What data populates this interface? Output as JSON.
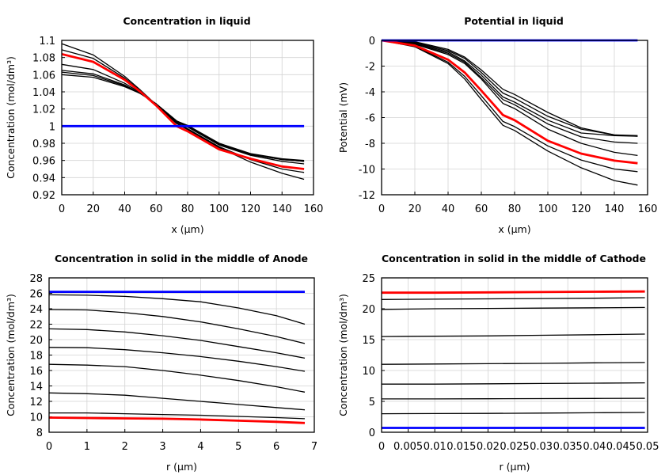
{
  "colors": {
    "black": "#000000",
    "red": "#ff0000",
    "blue": "#0000ff",
    "grid": "#d3d3d3"
  },
  "chart_data": [
    {
      "type": "line",
      "title": "Concentration in liquid",
      "xlabel": "x (µm)",
      "ylabel": "Concentration (mol/dm³)",
      "xlim": [
        0,
        160
      ],
      "ylim": [
        0.92,
        1.1
      ],
      "xticks": [
        "0",
        "20",
        "40",
        "60",
        "80",
        "100",
        "120",
        "140",
        "160"
      ],
      "yticks": [
        "0.92",
        "0.94",
        "0.96",
        "0.98",
        "1",
        "1.02",
        "1.04",
        "1.06",
        "1.08",
        "1.1"
      ],
      "grid": true,
      "x": [
        0,
        20,
        40,
        50,
        60,
        73,
        80,
        100,
        120,
        140,
        154
      ],
      "series": [
        {
          "color": "black",
          "values": [
            1.096,
            1.083,
            1.058,
            1.042,
            1.025,
            1.003,
            0.996,
            0.975,
            0.958,
            0.945,
            0.938
          ]
        },
        {
          "color": "black",
          "values": [
            1.089,
            1.079,
            1.056,
            1.041,
            1.025,
            1.004,
            0.997,
            0.976,
            0.961,
            0.95,
            0.946
          ]
        },
        {
          "color": "black",
          "values": [
            1.072,
            1.066,
            1.05,
            1.039,
            1.026,
            1.005,
            0.999,
            0.978,
            0.966,
            0.959,
            0.956
          ]
        },
        {
          "color": "black",
          "values": [
            1.065,
            1.061,
            1.048,
            1.038,
            1.026,
            1.006,
            1.0,
            0.979,
            0.967,
            0.961,
            0.959
          ]
        },
        {
          "color": "black",
          "values": [
            1.063,
            1.059,
            1.047,
            1.038,
            1.026,
            1.006,
            1.0,
            0.98,
            0.967,
            0.961,
            0.959
          ]
        },
        {
          "color": "black",
          "values": [
            1.06,
            1.057,
            1.046,
            1.038,
            1.026,
            1.006,
            1.001,
            0.98,
            0.968,
            0.962,
            0.96
          ]
        },
        {
          "color": "red",
          "values": [
            1.084,
            1.075,
            1.054,
            1.04,
            1.024,
            1.0,
            0.994,
            0.973,
            0.962,
            0.953,
            0.95
          ]
        },
        {
          "color": "blue",
          "values": [
            1,
            1,
            1,
            1,
            1,
            1,
            1,
            1,
            1,
            1,
            1
          ]
        }
      ]
    },
    {
      "type": "line",
      "title": "Potential in liquid",
      "xlabel": "x (µm)",
      "ylabel": "Potential (mV)",
      "xlim": [
        0,
        160
      ],
      "ylim": [
        -12,
        0
      ],
      "xticks": [
        "0",
        "20",
        "40",
        "60",
        "80",
        "100",
        "120",
        "140",
        "160"
      ],
      "yticks": [
        "-12",
        "-10",
        "-8",
        "-6",
        "-4",
        "-2",
        "0"
      ],
      "grid": true,
      "x": [
        0,
        20,
        40,
        50,
        60,
        73,
        80,
        100,
        120,
        140,
        154
      ],
      "series": [
        {
          "color": "black",
          "values": [
            0,
            -0.1,
            -0.7,
            -1.3,
            -2.3,
            -3.8,
            -4.2,
            -5.6,
            -6.8,
            -7.35,
            -7.45
          ]
        },
        {
          "color": "black",
          "values": [
            0,
            -0.15,
            -0.8,
            -1.4,
            -2.5,
            -4.1,
            -4.5,
            -5.9,
            -6.9,
            -7.35,
            -7.4
          ]
        },
        {
          "color": "black",
          "values": [
            0,
            -0.2,
            -0.9,
            -1.6,
            -2.7,
            -4.4,
            -4.8,
            -6.2,
            -7.2,
            -7.4,
            -7.45
          ]
        },
        {
          "color": "black",
          "values": [
            0,
            -0.25,
            -1.0,
            -1.7,
            -2.9,
            -4.6,
            -5.0,
            -6.5,
            -7.5,
            -7.9,
            -8.0
          ]
        },
        {
          "color": "black",
          "values": [
            0,
            -0.3,
            -1.1,
            -1.8,
            -3.0,
            -4.9,
            -5.3,
            -6.9,
            -8.0,
            -8.7,
            -8.95
          ]
        },
        {
          "color": "black",
          "values": [
            0,
            -0.45,
            -1.7,
            -2.8,
            -4.3,
            -6.3,
            -6.7,
            -8.2,
            -9.3,
            -10.0,
            -10.2
          ]
        },
        {
          "color": "black",
          "values": [
            0,
            -0.5,
            -1.8,
            -3.0,
            -4.6,
            -6.6,
            -7.0,
            -8.6,
            -9.9,
            -10.9,
            -11.25
          ]
        },
        {
          "color": "red",
          "values": [
            0,
            -0.4,
            -1.5,
            -2.5,
            -3.9,
            -5.8,
            -6.2,
            -7.8,
            -8.8,
            -9.35,
            -9.55
          ]
        },
        {
          "color": "blue",
          "values": [
            0,
            0,
            0,
            0,
            0,
            0,
            0,
            0,
            0,
            0,
            0
          ]
        }
      ]
    },
    {
      "type": "line",
      "title": "Concentration in solid in the middle of Anode",
      "xlabel": "r (µm)",
      "ylabel": "Concentration (mol/dm³)",
      "xlim": [
        0,
        7
      ],
      "ylim": [
        8,
        28
      ],
      "xticks": [
        "0",
        "1",
        "2",
        "3",
        "4",
        "5",
        "6",
        "7"
      ],
      "yticks": [
        "8",
        "10",
        "12",
        "14",
        "16",
        "18",
        "20",
        "22",
        "24",
        "26",
        "28"
      ],
      "grid": true,
      "x": [
        0,
        1,
        2,
        3,
        4,
        5,
        6,
        6.75
      ],
      "series": [
        {
          "color": "black",
          "values": [
            25.8,
            25.75,
            25.6,
            25.3,
            24.9,
            24.1,
            23.1,
            22.0
          ]
        },
        {
          "color": "black",
          "values": [
            23.9,
            23.85,
            23.5,
            23.0,
            22.3,
            21.4,
            20.4,
            19.5
          ]
        },
        {
          "color": "black",
          "values": [
            21.4,
            21.3,
            21.0,
            20.5,
            19.9,
            19.1,
            18.3,
            17.6
          ]
        },
        {
          "color": "black",
          "values": [
            19.0,
            18.95,
            18.7,
            18.3,
            17.8,
            17.2,
            16.5,
            15.9
          ]
        },
        {
          "color": "black",
          "values": [
            16.8,
            16.7,
            16.5,
            16.0,
            15.4,
            14.7,
            13.9,
            13.2
          ]
        },
        {
          "color": "black",
          "values": [
            13.1,
            13.0,
            12.8,
            12.4,
            12.0,
            11.6,
            11.2,
            10.9
          ]
        },
        {
          "color": "black",
          "values": [
            10.5,
            10.5,
            10.4,
            10.3,
            10.2,
            10.05,
            9.9,
            9.75
          ]
        },
        {
          "color": "red",
          "values": [
            9.9,
            9.85,
            9.8,
            9.75,
            9.65,
            9.5,
            9.35,
            9.2
          ]
        },
        {
          "color": "blue",
          "values": [
            26.2,
            26.2,
            26.2,
            26.2,
            26.2,
            26.2,
            26.2,
            26.2
          ]
        }
      ]
    },
    {
      "type": "line",
      "title": "Concentration in solid in the middle of Cathode",
      "xlabel": "r (µm)",
      "ylabel": "Concentration (mol/dm³)",
      "xlim": [
        0,
        0.05
      ],
      "ylim": [
        0,
        25
      ],
      "xticks": [
        "0",
        "0.005",
        "0.01",
        "0.015",
        "0.02",
        "0.025",
        "0.03",
        "0.035",
        "0.04",
        "0.045",
        "0.05"
      ],
      "yticks": [
        "0",
        "5",
        "10",
        "15",
        "20",
        "25"
      ],
      "grid": true,
      "x": [
        0,
        0.01,
        0.02,
        0.03,
        0.04,
        0.0495
      ],
      "series": [
        {
          "color": "black",
          "values": [
            21.5,
            21.55,
            21.6,
            21.65,
            21.7,
            21.8
          ]
        },
        {
          "color": "black",
          "values": [
            19.9,
            20.0,
            20.05,
            20.1,
            20.15,
            20.2
          ]
        },
        {
          "color": "black",
          "values": [
            15.5,
            15.55,
            15.6,
            15.7,
            15.8,
            15.9
          ]
        },
        {
          "color": "black",
          "values": [
            11.0,
            11.05,
            11.1,
            11.15,
            11.25,
            11.3
          ]
        },
        {
          "color": "black",
          "values": [
            7.8,
            7.8,
            7.85,
            7.9,
            7.95,
            8.0
          ]
        },
        {
          "color": "black",
          "values": [
            5.4,
            5.4,
            5.42,
            5.45,
            5.48,
            5.5
          ]
        },
        {
          "color": "black",
          "values": [
            3.0,
            3.02,
            3.05,
            3.1,
            3.15,
            3.2
          ]
        },
        {
          "color": "red",
          "values": [
            22.6,
            22.6,
            22.65,
            22.7,
            22.75,
            22.8
          ]
        },
        {
          "color": "blue",
          "values": [
            0.7,
            0.7,
            0.7,
            0.7,
            0.7,
            0.7
          ]
        }
      ]
    }
  ]
}
